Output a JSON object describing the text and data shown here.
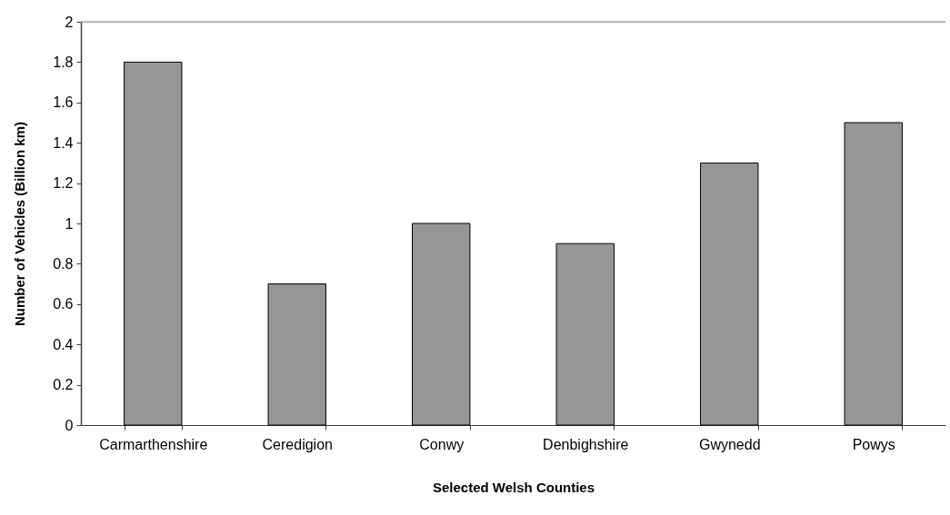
{
  "chart_data": {
    "type": "bar",
    "xlabel": "Selected Welsh Counties",
    "ylabel": "Number of Vehicles (Billion km)",
    "categories": [
      "Carmarthenshire",
      "Ceredigion",
      "Conwy",
      "Denbighshire",
      "Gwynedd",
      "Powys"
    ],
    "values": [
      1.8,
      0.7,
      1,
      0.9,
      1.3,
      1.5
    ],
    "color": "#969696",
    "ylim": [
      0,
      2
    ],
    "yticks": [
      0,
      0.2,
      0.4,
      0.6,
      0.8,
      1,
      1.2,
      1.4,
      1.6,
      1.8,
      2
    ],
    "grid": false,
    "ref_lines": [
      {
        "axis": "y",
        "value": 2,
        "color": "#a0a0a0"
      }
    ]
  }
}
